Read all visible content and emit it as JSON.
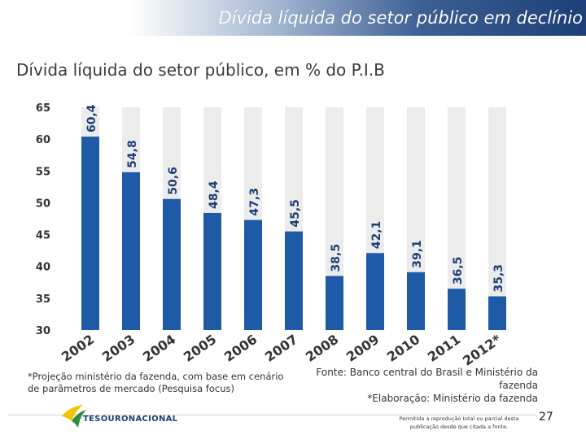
{
  "header": {
    "title": "Dívida líquida do setor público em declínio"
  },
  "chart_data": {
    "type": "bar",
    "title": "Dívida líquida do setor público, em % do P.I.B",
    "categories": [
      "2002",
      "2003",
      "2004",
      "2005",
      "2006",
      "2007",
      "2008",
      "2009",
      "2010",
      "2011",
      "2012*"
    ],
    "values": [
      60.4,
      54.8,
      50.6,
      48.4,
      47.3,
      45.5,
      38.5,
      42.1,
      39.1,
      36.5,
      35.3
    ],
    "data_labels": [
      "60,4",
      "54,8",
      "50,6",
      "48,4",
      "47,3",
      "45,5",
      "38,5",
      "42,1",
      "39,1",
      "36,5",
      "35,3"
    ],
    "yticks": [
      "30",
      "35",
      "40",
      "45",
      "50",
      "55",
      "60",
      "65"
    ],
    "ylim": [
      30,
      65
    ],
    "xlabel": "",
    "ylabel": "",
    "colors": {
      "bar": "#1f5aa6",
      "background_column": "#ececec",
      "label": "#1c3f77"
    }
  },
  "footnotes": {
    "projection": "*Projeção ministério da fazenda, com base em cenário de parâmetros de mercado (Pesquisa focus)",
    "source_line1": "Fonte: Banco central do Brasil e Ministério da",
    "source_line2": "fazenda",
    "elaboration": "*Elaboração: Ministério da fazenda"
  },
  "footer": {
    "logo_text": "TESOURONACIONAL",
    "rights_line1": "Permitida a reprodução total ou parcial desta",
    "rights_line2": "publicação desde que citada a fonte.",
    "page_number": "27"
  }
}
